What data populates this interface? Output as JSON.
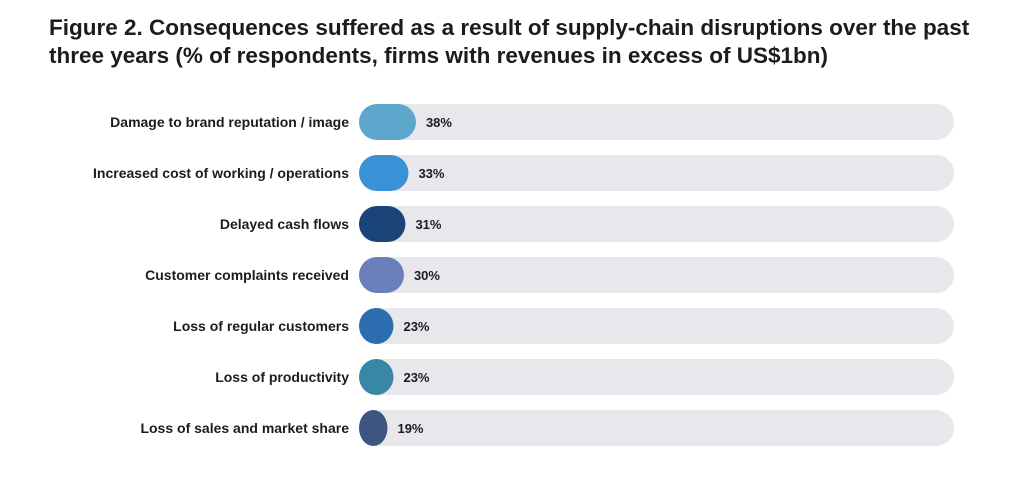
{
  "chart_data": {
    "type": "bar",
    "orientation": "horizontal",
    "title": "Figure 2. Consequences suffered as a result of supply-chain disruptions over the past three years (% of respondents, firms with revenues in excess of US$1bn)",
    "categories": [
      "Damage to brand reputation / image",
      "Increased cost of working / operations",
      "Delayed cash flows",
      "Customer complaints received",
      "Loss of regular customers",
      "Loss of productivity",
      "Loss of sales and market share"
    ],
    "values": [
      38,
      33,
      31,
      30,
      23,
      23,
      19
    ],
    "value_labels": [
      "38%",
      "33%",
      "31%",
      "30%",
      "23%",
      "23%",
      "19%"
    ],
    "xlim": [
      0,
      45
    ],
    "grid": false,
    "legend": "none",
    "bar_colors": [
      "#5ea7cc",
      "#3992d6",
      "#1a4478",
      "#6b7fbb",
      "#2b6daf",
      "#3a87a5",
      "#3d5580"
    ],
    "track_color": "#e8e8ec"
  }
}
